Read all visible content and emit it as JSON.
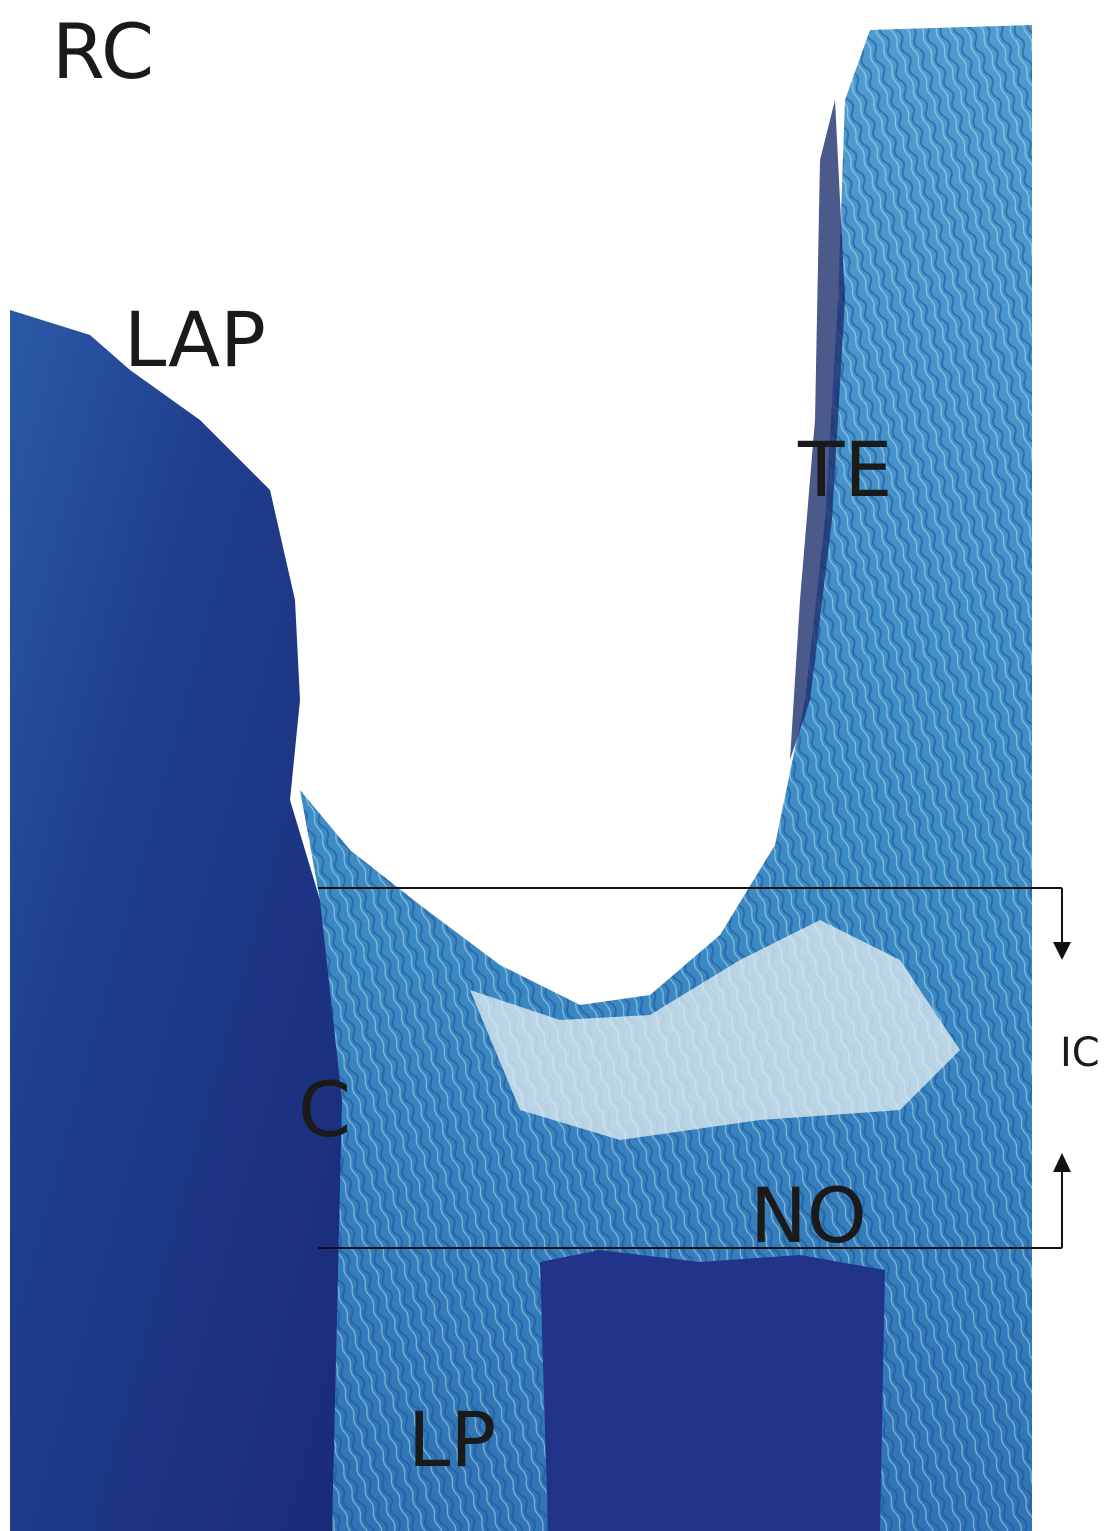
{
  "labels": {
    "rc": "RC",
    "lap": "LAP",
    "te": "TE",
    "c": "C",
    "no": "NO",
    "lp": "LP",
    "ic": "IC"
  }
}
